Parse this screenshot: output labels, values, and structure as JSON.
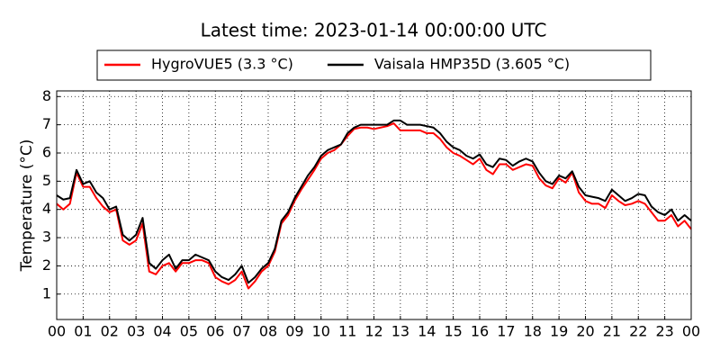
{
  "chart_data": {
    "type": "line",
    "title": "Latest time: 2023-01-14 00:00:00 UTC",
    "y_label": "Temperature (°C)",
    "x": [
      0,
      0.25,
      0.5,
      0.75,
      1,
      1.25,
      1.5,
      1.75,
      2,
      2.25,
      2.5,
      2.75,
      3,
      3.25,
      3.5,
      3.75,
      4,
      4.25,
      4.5,
      4.75,
      5,
      5.25,
      5.5,
      5.75,
      6,
      6.25,
      6.5,
      6.75,
      7,
      7.25,
      7.5,
      7.75,
      8,
      8.25,
      8.5,
      8.75,
      9,
      9.25,
      9.5,
      9.75,
      10,
      10.25,
      10.5,
      10.75,
      11,
      11.25,
      11.5,
      11.75,
      12,
      12.25,
      12.5,
      12.75,
      13,
      13.25,
      13.5,
      13.75,
      14,
      14.25,
      14.5,
      14.75,
      15,
      15.25,
      15.5,
      15.75,
      16,
      16.25,
      16.5,
      16.75,
      17,
      17.25,
      17.5,
      17.75,
      18,
      18.25,
      18.5,
      18.75,
      19,
      19.25,
      19.5,
      19.75,
      20,
      20.25,
      20.5,
      20.75,
      21,
      21.25,
      21.5,
      21.75,
      22,
      22.25,
      22.5,
      22.75,
      23,
      23.25,
      23.5,
      23.75,
      24
    ],
    "series": [
      {
        "name": "HygroVUE5 (3.3 °C)",
        "color": "#ff0000",
        "values": [
          4.2,
          4.0,
          4.2,
          5.3,
          4.8,
          4.8,
          4.4,
          4.1,
          3.9,
          4.0,
          2.9,
          2.75,
          2.9,
          3.5,
          1.8,
          1.7,
          2.0,
          2.1,
          1.8,
          2.1,
          2.1,
          2.2,
          2.2,
          2.1,
          1.6,
          1.45,
          1.35,
          1.5,
          1.8,
          1.2,
          1.45,
          1.8,
          2.0,
          2.5,
          3.5,
          3.8,
          4.3,
          4.7,
          5.05,
          5.4,
          5.8,
          6.0,
          6.1,
          6.3,
          6.6,
          6.85,
          6.9,
          6.9,
          6.85,
          6.9,
          6.95,
          7.05,
          6.8,
          6.8,
          6.8,
          6.8,
          6.7,
          6.7,
          6.5,
          6.2,
          6.0,
          5.9,
          5.75,
          5.6,
          5.8,
          5.4,
          5.25,
          5.6,
          5.6,
          5.4,
          5.5,
          5.6,
          5.55,
          5.1,
          4.85,
          4.75,
          5.1,
          4.95,
          5.3,
          4.6,
          4.3,
          4.2,
          4.2,
          4.05,
          4.5,
          4.3,
          4.15,
          4.2,
          4.3,
          4.2,
          3.9,
          3.6,
          3.6,
          3.8,
          3.4,
          3.6,
          3.3
        ]
      },
      {
        "name": "Vaisala HMP35D (3.605 °C)",
        "color": "#000000",
        "values": [
          4.5,
          4.35,
          4.4,
          5.4,
          4.9,
          5.0,
          4.6,
          4.4,
          4.0,
          4.1,
          3.1,
          2.9,
          3.1,
          3.7,
          2.1,
          1.9,
          2.2,
          2.4,
          1.9,
          2.2,
          2.2,
          2.4,
          2.3,
          2.2,
          1.8,
          1.6,
          1.5,
          1.7,
          2.0,
          1.4,
          1.6,
          1.9,
          2.1,
          2.6,
          3.6,
          3.9,
          4.4,
          4.8,
          5.2,
          5.5,
          5.9,
          6.1,
          6.2,
          6.3,
          6.7,
          6.9,
          7.0,
          7.0,
          7.0,
          7.0,
          7.0,
          7.15,
          7.15,
          7.0,
          7.0,
          7.0,
          6.95,
          6.9,
          6.7,
          6.4,
          6.2,
          6.1,
          5.9,
          5.8,
          5.95,
          5.6,
          5.5,
          5.8,
          5.75,
          5.55,
          5.7,
          5.8,
          5.7,
          5.3,
          5.0,
          4.9,
          5.2,
          5.1,
          5.35,
          4.8,
          4.5,
          4.45,
          4.4,
          4.3,
          4.7,
          4.5,
          4.3,
          4.4,
          4.55,
          4.5,
          4.1,
          3.9,
          3.8,
          4.0,
          3.6,
          3.8,
          3.6
        ]
      }
    ],
    "xlim": [
      0,
      24
    ],
    "xticks": [
      {
        "value": 0,
        "label": "00"
      },
      {
        "value": 1,
        "label": "01"
      },
      {
        "value": 2,
        "label": "02"
      },
      {
        "value": 3,
        "label": "03"
      },
      {
        "value": 4,
        "label": "04"
      },
      {
        "value": 5,
        "label": "05"
      },
      {
        "value": 6,
        "label": "06"
      },
      {
        "value": 7,
        "label": "07"
      },
      {
        "value": 8,
        "label": "08"
      },
      {
        "value": 9,
        "label": "09"
      },
      {
        "value": 10,
        "label": "10"
      },
      {
        "value": 11,
        "label": "11"
      },
      {
        "value": 12,
        "label": "12"
      },
      {
        "value": 13,
        "label": "13"
      },
      {
        "value": 14,
        "label": "14"
      },
      {
        "value": 15,
        "label": "15"
      },
      {
        "value": 16,
        "label": "16"
      },
      {
        "value": 17,
        "label": "17"
      },
      {
        "value": 18,
        "label": "18"
      },
      {
        "value": 19,
        "label": "19"
      },
      {
        "value": 20,
        "label": "20"
      },
      {
        "value": 21,
        "label": "21"
      },
      {
        "value": 22,
        "label": "22"
      },
      {
        "value": 23,
        "label": "23"
      },
      {
        "value": 24,
        "label": "00"
      }
    ],
    "ylim": [
      0.1,
      8.2
    ],
    "yticks": [
      1,
      2,
      3,
      4,
      5,
      6,
      7,
      8
    ],
    "grid": true
  }
}
